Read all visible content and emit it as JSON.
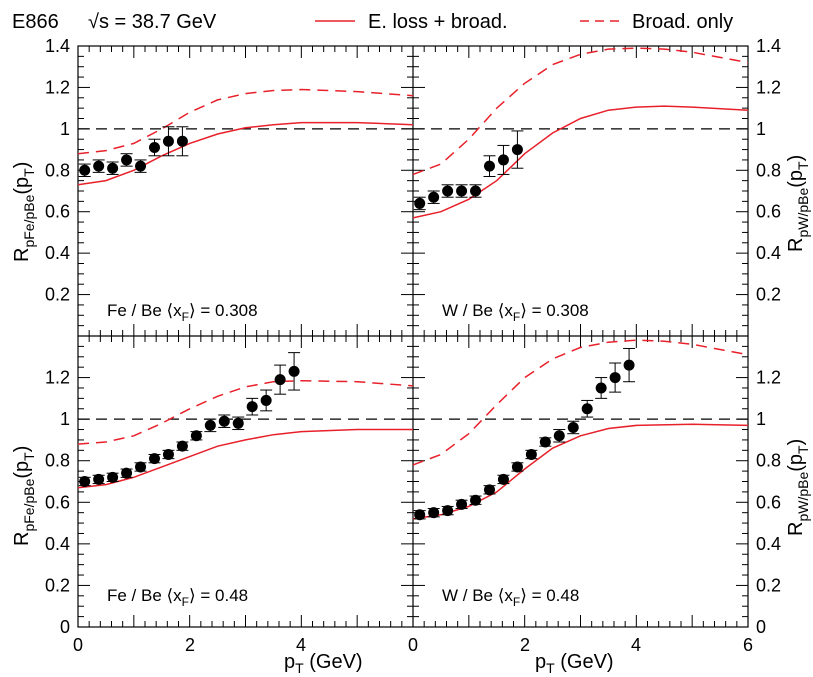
{
  "header": {
    "experiment": "E866",
    "energy": "√s = 38.7 GeV"
  },
  "legend": [
    {
      "label": "E. loss + broad.",
      "style": "solid",
      "color": "#e8202a"
    },
    {
      "label": "Broad. only",
      "style": "dashed",
      "color": "#e8202a"
    }
  ],
  "axes": {
    "xlabel": "p_T (GeV)",
    "ylabel_left": "R_pFe/pBe(p_T)",
    "ylabel_right": "R_pW/pBe(p_T)",
    "x_ticks": [
      "0",
      "2",
      "4",
      "6"
    ],
    "y_ticks_top": [
      "0.2",
      "0.4",
      "0.6",
      "0.8",
      "1",
      "1.2",
      "1.4"
    ],
    "y_ticks_bottom": [
      "0",
      "0.2",
      "0.4",
      "0.6",
      "0.8",
      "1",
      "1.2"
    ]
  },
  "chart_data": [
    {
      "type": "scatter",
      "label": "Fe / Be  ⟨x_F⟩ = 0.308",
      "xlim": [
        0,
        6
      ],
      "ylim": [
        0,
        1.4
      ],
      "points": [
        {
          "x": 0.12,
          "y": 0.8,
          "err": 0.03
        },
        {
          "x": 0.37,
          "y": 0.82,
          "err": 0.03
        },
        {
          "x": 0.62,
          "y": 0.81,
          "err": 0.03
        },
        {
          "x": 0.87,
          "y": 0.85,
          "err": 0.03
        },
        {
          "x": 1.12,
          "y": 0.82,
          "err": 0.03
        },
        {
          "x": 1.37,
          "y": 0.91,
          "err": 0.04
        },
        {
          "x": 1.62,
          "y": 0.94,
          "err": 0.07
        },
        {
          "x": 1.87,
          "y": 0.94,
          "err": 0.07
        }
      ],
      "eloss_broad": [
        [
          0,
          0.73
        ],
        [
          0.5,
          0.75
        ],
        [
          1,
          0.8
        ],
        [
          1.5,
          0.87
        ],
        [
          2,
          0.93
        ],
        [
          2.5,
          0.975
        ],
        [
          3,
          1.005
        ],
        [
          3.5,
          1.02
        ],
        [
          4,
          1.03
        ],
        [
          5,
          1.03
        ],
        [
          6,
          1.02
        ]
      ],
      "broad_only": [
        [
          0,
          0.88
        ],
        [
          0.5,
          0.895
        ],
        [
          1,
          0.93
        ],
        [
          1.5,
          1.0
        ],
        [
          2,
          1.08
        ],
        [
          2.5,
          1.14
        ],
        [
          3,
          1.17
        ],
        [
          3.5,
          1.185
        ],
        [
          4,
          1.19
        ],
        [
          5,
          1.18
        ],
        [
          6,
          1.16
        ]
      ]
    },
    {
      "type": "scatter",
      "label": "W / Be  ⟨x_F⟩ = 0.308",
      "xlim": [
        0,
        6
      ],
      "ylim": [
        0,
        1.4
      ],
      "points": [
        {
          "x": 0.12,
          "y": 0.64,
          "err": 0.03
        },
        {
          "x": 0.37,
          "y": 0.67,
          "err": 0.03
        },
        {
          "x": 0.62,
          "y": 0.7,
          "err": 0.03
        },
        {
          "x": 0.87,
          "y": 0.7,
          "err": 0.03
        },
        {
          "x": 1.12,
          "y": 0.7,
          "err": 0.03
        },
        {
          "x": 1.37,
          "y": 0.82,
          "err": 0.05
        },
        {
          "x": 1.62,
          "y": 0.85,
          "err": 0.07
        },
        {
          "x": 1.87,
          "y": 0.9,
          "err": 0.09
        }
      ],
      "eloss_broad": [
        [
          0,
          0.57
        ],
        [
          0.5,
          0.6
        ],
        [
          1,
          0.66
        ],
        [
          1.5,
          0.75
        ],
        [
          2,
          0.88
        ],
        [
          2.5,
          0.98
        ],
        [
          3,
          1.05
        ],
        [
          3.5,
          1.09
        ],
        [
          4,
          1.105
        ],
        [
          4.5,
          1.11
        ],
        [
          5,
          1.105
        ],
        [
          6,
          1.09
        ]
      ],
      "broad_only": [
        [
          0,
          0.78
        ],
        [
          0.5,
          0.83
        ],
        [
          1,
          0.95
        ],
        [
          1.5,
          1.1
        ],
        [
          2,
          1.22
        ],
        [
          2.5,
          1.31
        ],
        [
          3,
          1.36
        ],
        [
          3.5,
          1.385
        ],
        [
          4,
          1.39
        ],
        [
          4.5,
          1.385
        ],
        [
          5,
          1.37
        ],
        [
          6,
          1.32
        ]
      ]
    },
    {
      "type": "scatter",
      "label": "Fe / Be  ⟨x_F⟩ = 0.48",
      "xlim": [
        0,
        6
      ],
      "ylim": [
        0,
        1.4
      ],
      "points": [
        {
          "x": 0.12,
          "y": 0.7,
          "err": 0.02
        },
        {
          "x": 0.37,
          "y": 0.71,
          "err": 0.02
        },
        {
          "x": 0.62,
          "y": 0.72,
          "err": 0.02
        },
        {
          "x": 0.87,
          "y": 0.74,
          "err": 0.02
        },
        {
          "x": 1.12,
          "y": 0.77,
          "err": 0.02
        },
        {
          "x": 1.37,
          "y": 0.81,
          "err": 0.02
        },
        {
          "x": 1.62,
          "y": 0.83,
          "err": 0.02
        },
        {
          "x": 1.87,
          "y": 0.87,
          "err": 0.02
        },
        {
          "x": 2.12,
          "y": 0.92,
          "err": 0.02
        },
        {
          "x": 2.37,
          "y": 0.97,
          "err": 0.03
        },
        {
          "x": 2.62,
          "y": 0.99,
          "err": 0.03
        },
        {
          "x": 2.87,
          "y": 0.98,
          "err": 0.03
        },
        {
          "x": 3.12,
          "y": 1.06,
          "err": 0.04
        },
        {
          "x": 3.37,
          "y": 1.09,
          "err": 0.05
        },
        {
          "x": 3.62,
          "y": 1.19,
          "err": 0.07
        },
        {
          "x": 3.87,
          "y": 1.23,
          "err": 0.09
        }
      ],
      "eloss_broad": [
        [
          0,
          0.67
        ],
        [
          0.5,
          0.685
        ],
        [
          1,
          0.72
        ],
        [
          1.5,
          0.77
        ],
        [
          2,
          0.82
        ],
        [
          2.5,
          0.87
        ],
        [
          3,
          0.9
        ],
        [
          3.5,
          0.925
        ],
        [
          4,
          0.94
        ],
        [
          5,
          0.95
        ],
        [
          6,
          0.95
        ]
      ],
      "broad_only": [
        [
          0,
          0.88
        ],
        [
          0.5,
          0.89
        ],
        [
          1,
          0.92
        ],
        [
          1.5,
          0.98
        ],
        [
          2,
          1.05
        ],
        [
          2.5,
          1.11
        ],
        [
          3,
          1.155
        ],
        [
          3.5,
          1.18
        ],
        [
          4,
          1.185
        ],
        [
          5,
          1.18
        ],
        [
          6,
          1.16
        ]
      ]
    },
    {
      "type": "scatter",
      "label": "W / Be  ⟨x_F⟩ = 0.48",
      "xlim": [
        0,
        6
      ],
      "ylim": [
        0,
        1.4
      ],
      "points": [
        {
          "x": 0.12,
          "y": 0.54,
          "err": 0.02
        },
        {
          "x": 0.37,
          "y": 0.55,
          "err": 0.02
        },
        {
          "x": 0.62,
          "y": 0.56,
          "err": 0.02
        },
        {
          "x": 0.87,
          "y": 0.59,
          "err": 0.02
        },
        {
          "x": 1.12,
          "y": 0.61,
          "err": 0.02
        },
        {
          "x": 1.37,
          "y": 0.66,
          "err": 0.02
        },
        {
          "x": 1.62,
          "y": 0.71,
          "err": 0.02
        },
        {
          "x": 1.87,
          "y": 0.77,
          "err": 0.02
        },
        {
          "x": 2.12,
          "y": 0.83,
          "err": 0.02
        },
        {
          "x": 2.37,
          "y": 0.89,
          "err": 0.02
        },
        {
          "x": 2.62,
          "y": 0.92,
          "err": 0.03
        },
        {
          "x": 2.87,
          "y": 0.96,
          "err": 0.03
        },
        {
          "x": 3.12,
          "y": 1.05,
          "err": 0.04
        },
        {
          "x": 3.37,
          "y": 1.15,
          "err": 0.05
        },
        {
          "x": 3.62,
          "y": 1.2,
          "err": 0.07
        },
        {
          "x": 3.87,
          "y": 1.26,
          "err": 0.08
        }
      ],
      "eloss_broad": [
        [
          0,
          0.52
        ],
        [
          0.5,
          0.54
        ],
        [
          1,
          0.58
        ],
        [
          1.5,
          0.65
        ],
        [
          2,
          0.76
        ],
        [
          2.5,
          0.86
        ],
        [
          3,
          0.92
        ],
        [
          3.5,
          0.955
        ],
        [
          4,
          0.97
        ],
        [
          5,
          0.975
        ],
        [
          6,
          0.97
        ]
      ],
      "broad_only": [
        [
          0,
          0.78
        ],
        [
          0.5,
          0.83
        ],
        [
          1,
          0.93
        ],
        [
          1.5,
          1.07
        ],
        [
          2,
          1.2
        ],
        [
          2.5,
          1.29
        ],
        [
          3,
          1.345
        ],
        [
          3.5,
          1.37
        ],
        [
          4,
          1.38
        ],
        [
          4.5,
          1.375
        ],
        [
          5,
          1.36
        ],
        [
          6,
          1.31
        ]
      ]
    }
  ]
}
